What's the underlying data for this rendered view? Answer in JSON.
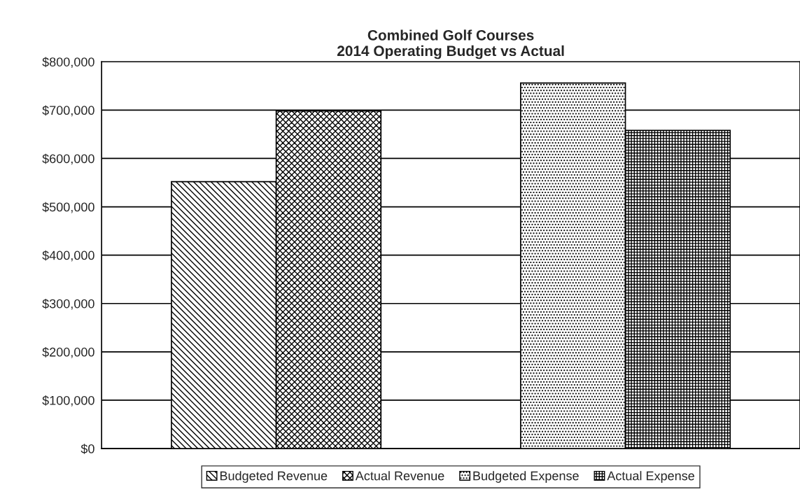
{
  "chart_data": {
    "type": "bar",
    "title": "Combined Golf Courses\n2014 Operating Budget vs Actual",
    "categories": [
      null,
      null
    ],
    "series": [
      {
        "name": "Budgeted Revenue",
        "color": "#000000",
        "values": [
          552000,
          null
        ]
      },
      {
        "name": "Actual Revenue",
        "color": "#000000",
        "values": [
          698000,
          null
        ]
      },
      {
        "name": "Budgeted Expense",
        "color": "#000000",
        "values": [
          null,
          756000
        ]
      },
      {
        "name": "Actual Expense",
        "color": "#000000",
        "values": [
          null,
          658000
        ]
      }
    ],
    "ylim": [
      0,
      800000
    ],
    "yticks": [
      {
        "value": 0,
        "label": "$0"
      },
      {
        "value": 100000,
        "label": "$100,000"
      },
      {
        "value": 200000,
        "label": "$200,000"
      },
      {
        "value": 300000,
        "label": "$300,000"
      },
      {
        "value": 400000,
        "label": "$400,000"
      },
      {
        "value": 500000,
        "label": "$500,000"
      },
      {
        "value": 600000,
        "label": "$600,000"
      },
      {
        "value": 700000,
        "label": "$700,000"
      },
      {
        "value": 800000,
        "label": "$800,000"
      }
    ],
    "grid": "y",
    "legend": "bottom"
  }
}
